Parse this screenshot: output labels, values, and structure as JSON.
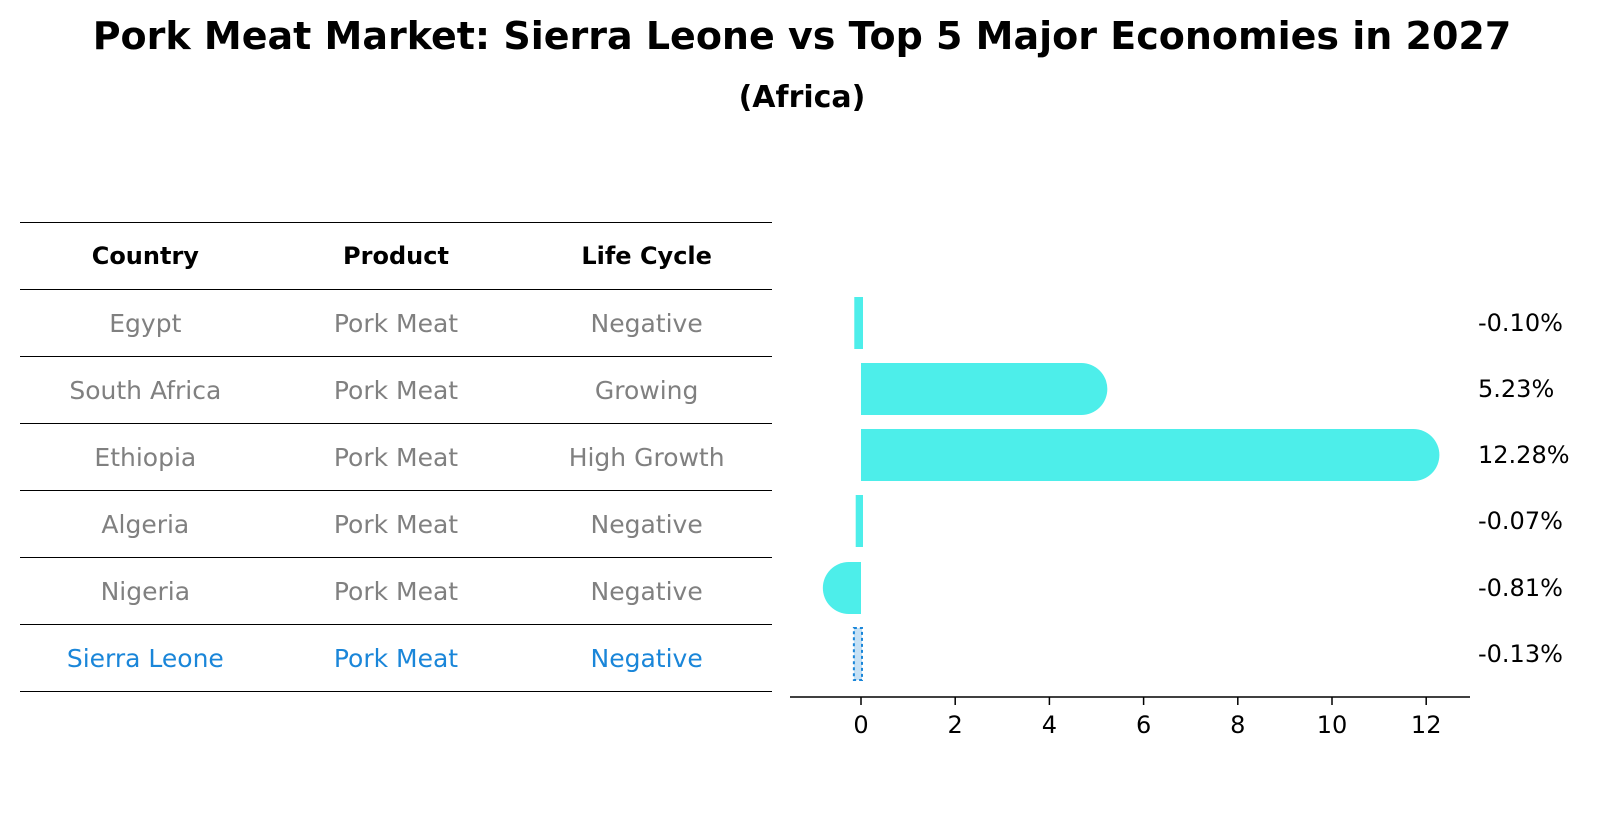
{
  "title": "Pork Meat Market: Sierra Leone vs Top 5 Major Economies in 2027",
  "subtitle": "(Africa)",
  "table": {
    "headers": [
      "Country",
      "Product",
      "Life Cycle"
    ],
    "rows": [
      [
        "Egypt",
        "Pork Meat",
        "Negative"
      ],
      [
        "South Africa",
        "Pork Meat",
        "Growing"
      ],
      [
        "Ethiopia",
        "Pork Meat",
        "High Growth"
      ],
      [
        "Algeria",
        "Pork Meat",
        "Negative"
      ],
      [
        "Nigeria",
        "Pork Meat",
        "Negative"
      ],
      [
        "Sierra Leone",
        "Pork Meat",
        "Negative"
      ]
    ],
    "highlight_row": 5
  },
  "colors": {
    "bar": "#4deeea",
    "highlight": "#1a86d9",
    "table_text": "#808080"
  },
  "chart_data": {
    "type": "bar",
    "orientation": "horizontal",
    "categories": [
      "Egypt",
      "South Africa",
      "Ethiopia",
      "Algeria",
      "Nigeria",
      "Sierra Leone"
    ],
    "values": [
      -0.1,
      5.23,
      12.28,
      -0.07,
      -0.81,
      -0.13
    ],
    "data_labels": [
      "-0.10%",
      "5.23%",
      "12.28%",
      "-0.07%",
      "-0.81%",
      "-0.13%"
    ],
    "xlim": [
      -1.5,
      12.9
    ],
    "xticks": [
      0,
      2,
      4,
      6,
      8,
      10,
      12
    ],
    "grid": false
  }
}
